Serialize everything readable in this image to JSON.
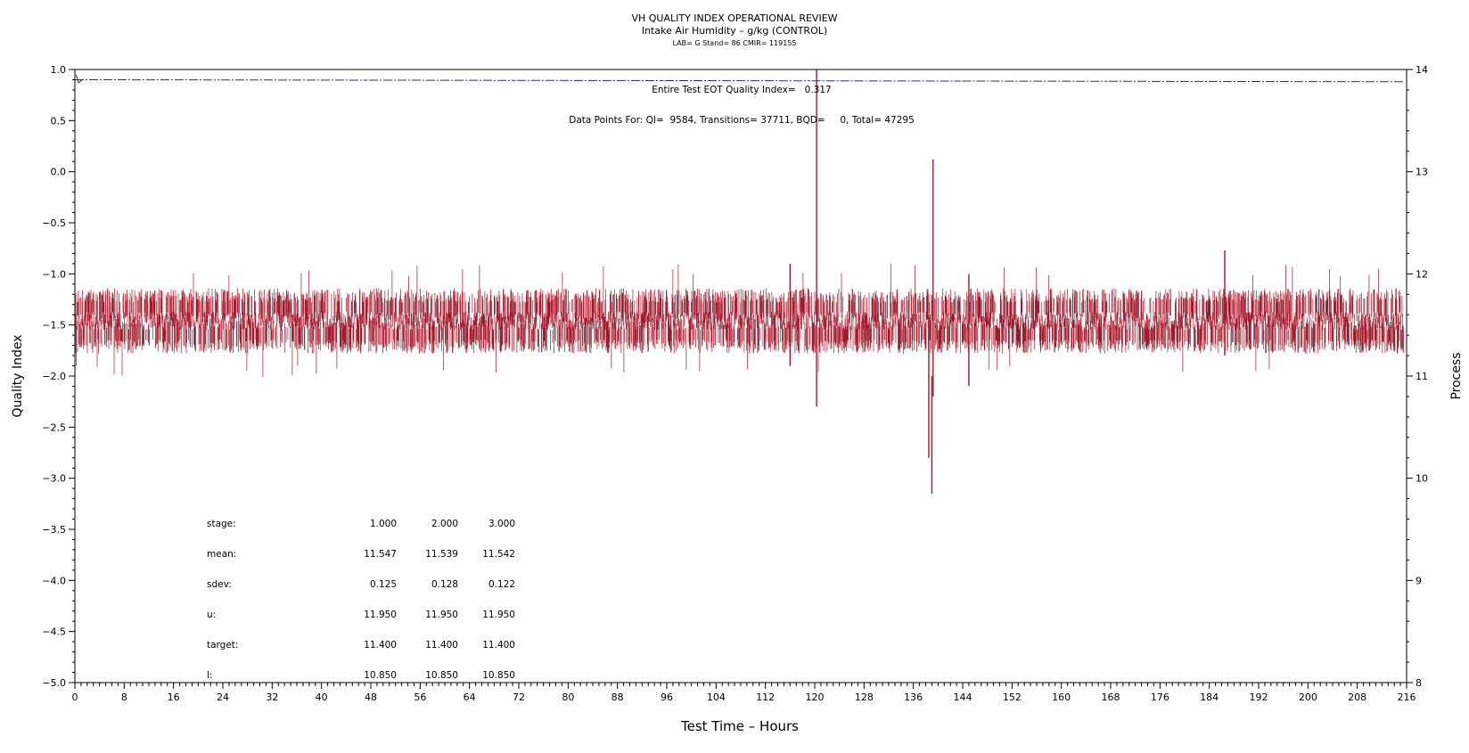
{
  "chart_data": {
    "type": "line",
    "title": "VH QUALITY INDEX OPERATIONAL REVIEW",
    "subtitle": "Intake Air Humidity – g/kg (CONTROL)",
    "subtitle2": "LAB= G Stand= 86 CMIR= 119155",
    "xlabel": "Test Time – Hours",
    "ylabel_left": "Quality Index",
    "ylabel_right": "Process",
    "xlim": [
      0,
      216
    ],
    "ylim_left": [
      -5.0,
      1.0
    ],
    "ylim_right": [
      8,
      14
    ],
    "x_ticks": [
      "0",
      "8",
      "16",
      "24",
      "32",
      "40",
      "48",
      "56",
      "64",
      "72",
      "80",
      "88",
      "96",
      "104",
      "112",
      "120",
      "128",
      "136",
      "144",
      "152",
      "160",
      "168",
      "176",
      "184",
      "192",
      "200",
      "208",
      "216"
    ],
    "y_ticks_left": [
      "1.0",
      "0.5",
      "0.0",
      "−0.5",
      "−1.0",
      "−1.5",
      "−2.0",
      "−2.5",
      "−3.0",
      "−3.5",
      "−4.0",
      "−4.5",
      "−5.0"
    ],
    "y_ticks_right": [
      "14",
      "13",
      "12",
      "11",
      "10",
      "9",
      "8"
    ],
    "grid": false,
    "series": [
      {
        "name": "",
        "axis": "right",
        "color": "#a3192b",
        "style": "dense-trace",
        "segments": [
          [
            0,
            23.5
          ],
          [
            23.7,
            47.5
          ],
          [
            47.7,
            71.5
          ],
          [
            71.7,
            95.5
          ],
          [
            95.7,
            119.3
          ],
          [
            119.5,
            139.2
          ],
          [
            139.4,
            143.7
          ],
          [
            143.9,
            167.5
          ],
          [
            167.7,
            215.5
          ]
        ],
        "base_level": 11.54,
        "typical_range": [
          11.3,
          11.8
        ],
        "spikes": [
          {
            "x": 116.0,
            "y_min": 11.1,
            "y_max": 12.1
          },
          {
            "x": 120.3,
            "y_min": 10.7,
            "y_max": 14.0
          },
          {
            "x": 138.5,
            "y_min": 10.2,
            "y_max": 11.6
          },
          {
            "x": 139.0,
            "y_min": 9.85,
            "y_max": 11.0
          },
          {
            "x": 139.2,
            "y_min": 10.8,
            "y_max": 13.12
          },
          {
            "x": 145.0,
            "y_min": 10.9,
            "y_max": 12.0
          },
          {
            "x": 186.5,
            "y_min": 11.2,
            "y_max": 12.23
          }
        ]
      },
      {
        "name": "",
        "axis": "left",
        "color": "#1f2c8f",
        "style": "dash-dot",
        "segments": [
          [
            0,
            23.5
          ],
          [
            23.7,
            47.5
          ],
          [
            47.7,
            71.5
          ],
          [
            71.7,
            95.5
          ],
          [
            95.7,
            119.3
          ],
          [
            119.5,
            143.7
          ],
          [
            143.9,
            167.5
          ],
          [
            167.7,
            215.5
          ]
        ],
        "level": 0.9,
        "end_level": 0.88
      }
    ],
    "annotations": {
      "eot": "Entire Test EOT Quality Index=   0.317",
      "points": "Data Points For: QI=  9584, Transitions= 37711, BQD=     0, Total= 47295"
    },
    "stats_table": {
      "rows": [
        {
          "label": "stage:",
          "values": [
            "1.000",
            "2.000",
            "3.000"
          ]
        },
        {
          "label": "mean:",
          "values": [
            "11.547",
            "11.539",
            "11.542"
          ]
        },
        {
          "label": "sdev:",
          "values": [
            "0.125",
            "0.128",
            "0.122"
          ]
        },
        {
          "label": "u:",
          "values": [
            "11.950",
            "11.950",
            "11.950"
          ]
        },
        {
          "label": "target:",
          "values": [
            "11.400",
            "11.400",
            "11.400"
          ]
        },
        {
          "label": "l:",
          "values": [
            "10.850",
            "10.850",
            "10.850"
          ]
        }
      ]
    }
  }
}
